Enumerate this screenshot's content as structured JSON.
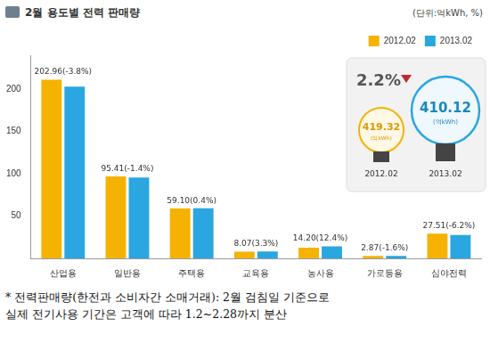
{
  "chart_data": {
    "type": "bar",
    "title": "2월 용도별 전력 판매량",
    "subtitle": "(단위:억kWh, %)",
    "categories": [
      "산업용",
      "일반용",
      "주택용",
      "교육용",
      "농사용",
      "가로등용",
      "심야전력"
    ],
    "series": [
      {
        "name": "2012.02",
        "color": "#f5b200",
        "values": [
          210.98,
          96.76,
          58.86,
          7.81,
          12.63,
          2.92,
          29.33
        ]
      },
      {
        "name": "2013.02",
        "color": "#2aa6e0",
        "values": [
          202.96,
          95.41,
          59.1,
          8.07,
          14.2,
          2.87,
          27.51
        ],
        "value_labels": [
          "202.96(-3.8%)",
          "95.41(-1.4%)",
          "59.10(0.4%)",
          "8.07(3.3%)",
          "14.20(12.4%)",
          "2.87(-1.6%)",
          "27.51(-6.2%)"
        ]
      }
    ],
    "ylim": [
      0,
      240
    ],
    "yticks": [
      50,
      100,
      150,
      200
    ],
    "grid": false,
    "legend": "upper right",
    "data_labels": true,
    "annotations": {
      "change": "2.2%",
      "totals": [
        {
          "name": "2012.02",
          "value": 419.32,
          "unit": "(억kWh)"
        },
        {
          "name": "2013.02",
          "value": 410.12,
          "unit": "(억kWh)"
        }
      ]
    },
    "note": [
      "* 전력판매량(한전과 소비자간 소매거래): 2월 검침일 기준으로",
      "실제 전기사용 기간은 고객에 따라 1.2~2.28까지 분산"
    ]
  }
}
